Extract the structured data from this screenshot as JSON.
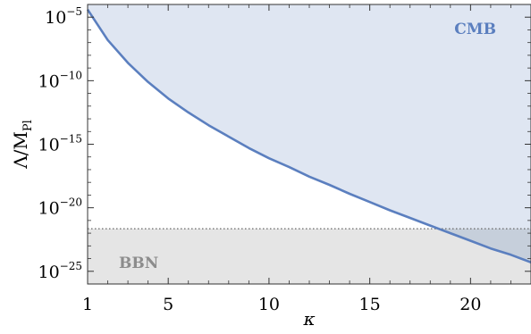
{
  "chart_data": {
    "type": "line",
    "xlabel": "κ",
    "ylabel_main": "Λ/M",
    "ylabel_sub": "Pl",
    "xlim": [
      1,
      23
    ],
    "ylim_exp": [
      -26,
      -4
    ],
    "y_log_scale": true,
    "x_ticks": [
      1,
      5,
      10,
      15,
      20
    ],
    "y_ticks": [
      {
        "base": "10",
        "exp": "−5",
        "value_exp": -5
      },
      {
        "base": "10",
        "exp": "−10",
        "value_exp": -10
      },
      {
        "base": "10",
        "exp": "−15",
        "value_exp": -15
      },
      {
        "base": "10",
        "exp": "−20",
        "value_exp": -20
      },
      {
        "base": "10",
        "exp": "−25",
        "value_exp": -25
      }
    ],
    "series": [
      {
        "x": [
          1,
          2,
          3,
          4,
          5,
          6,
          7,
          8,
          9,
          10,
          11,
          12,
          13,
          14,
          15,
          16,
          17,
          18,
          19,
          20,
          21,
          22,
          23
        ],
        "log10_y": [
          -4.4,
          -6.8,
          -8.6,
          -10.1,
          -11.4,
          -12.5,
          -13.5,
          -14.4,
          -15.3,
          -16.1,
          -16.8,
          -17.55,
          -18.2,
          -18.9,
          -19.55,
          -20.2,
          -20.8,
          -21.4,
          -22.0,
          -22.6,
          -23.2,
          -23.7,
          -24.3
        ]
      }
    ],
    "bbn_limit_log10": -21.65,
    "regions": [
      {
        "label": "CMB",
        "color": "#5b7fbf",
        "fill": "#dfe6f2"
      },
      {
        "label": "BBN",
        "color": "#8c8c8c",
        "fill": "#e5e5e5"
      }
    ],
    "line_color": "#5b7fbf",
    "overlap_fill": "#c6cfdb"
  }
}
